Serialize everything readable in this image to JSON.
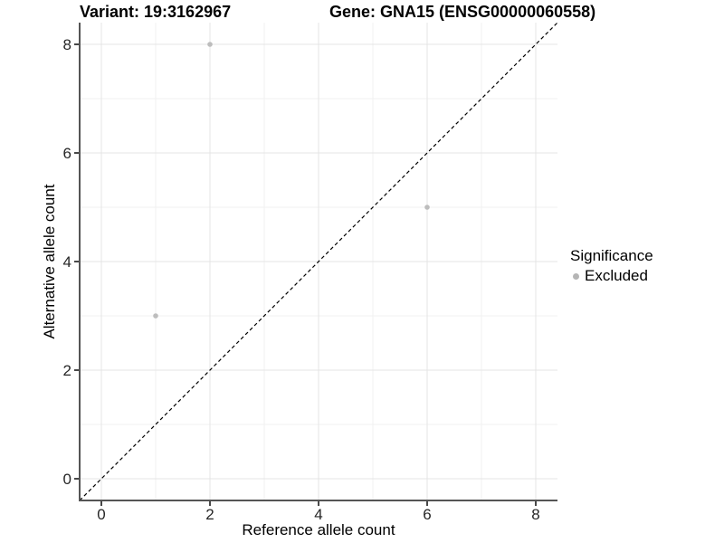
{
  "chart_data": {
    "type": "scatter",
    "title_left": "Variant: 19:3162967",
    "title_right": "Gene: GNA15 (ENSG00000060558)",
    "xlabel": "Reference allele count",
    "ylabel": "Alternative allele count",
    "xlim": [
      -0.4,
      8.4
    ],
    "ylim": [
      -0.4,
      8.4
    ],
    "major_ticks": [
      0,
      2,
      4,
      6,
      8
    ],
    "minor_ticks": [
      1,
      3,
      5,
      7
    ],
    "grid": true,
    "identity_line": {
      "style": "dashed",
      "color": "#000000",
      "from": [
        -0.4,
        -0.4
      ],
      "to": [
        8.4,
        8.4
      ]
    },
    "series": [
      {
        "name": "Excluded",
        "color": "#bdbdbd",
        "points": [
          {
            "x": 2,
            "y": 8
          },
          {
            "x": 6,
            "y": 5
          },
          {
            "x": 1,
            "y": 3
          }
        ]
      }
    ],
    "legend": {
      "title": "Significance",
      "position": "right",
      "items": [
        {
          "label": "Excluded",
          "color": "#b5b5b5"
        }
      ]
    }
  },
  "colors": {
    "grid_major": "#e4e4e4",
    "grid_minor": "#f1f1f1",
    "axis": "#555555",
    "tick": "#333333",
    "tick_label": "#262626",
    "background": "#ffffff"
  }
}
